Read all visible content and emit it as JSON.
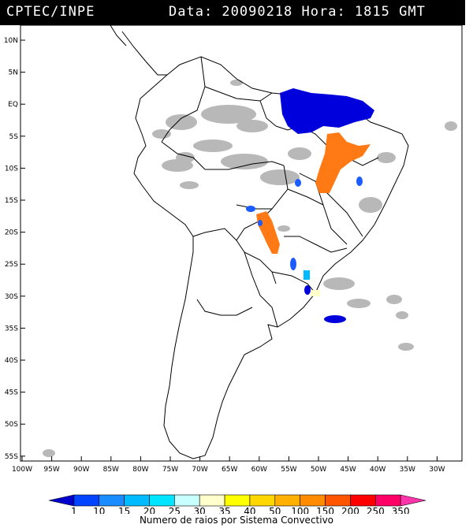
{
  "header": {
    "agency": "CPTEC/INPE",
    "datetime": "Data: 20090218 Hora: 1815 GMT"
  },
  "map": {
    "lat_labels": [
      "10N",
      "5N",
      "EQ",
      "5S",
      "10S",
      "15S",
      "20S",
      "25S",
      "30S",
      "35S",
      "40S",
      "45S",
      "50S",
      "55S"
    ],
    "lon_labels": [
      "100W",
      "95W",
      "90W",
      "85W",
      "80W",
      "75W",
      "70W",
      "65W",
      "60W",
      "55W",
      "50W",
      "45W",
      "40W",
      "35W",
      "30W"
    ]
  },
  "legend": {
    "title": "Numero de raios por Sistema Convectivo",
    "levels": [
      "1",
      "10",
      "15",
      "20",
      "25",
      "30",
      "35",
      "40",
      "50",
      "100",
      "150",
      "200",
      "250",
      "350"
    ],
    "colors": [
      "#0000cc",
      "#0044ff",
      "#1a8cff",
      "#00bbff",
      "#00e5ff",
      "#c8ffff",
      "#ffffcc",
      "#ffff00",
      "#ffd700",
      "#ffb000",
      "#ff8c00",
      "#ff5500",
      "#ff0000",
      "#ff0066",
      "#ff33aa"
    ]
  },
  "clusters": [
    {
      "name": "amazon-mouth",
      "color": "#0000dd"
    },
    {
      "name": "northeast-orange",
      "color": "#ff7a14"
    },
    {
      "name": "central-orange",
      "color": "#ff7a14"
    },
    {
      "name": "south-blue",
      "color": "#1a5cff"
    }
  ]
}
